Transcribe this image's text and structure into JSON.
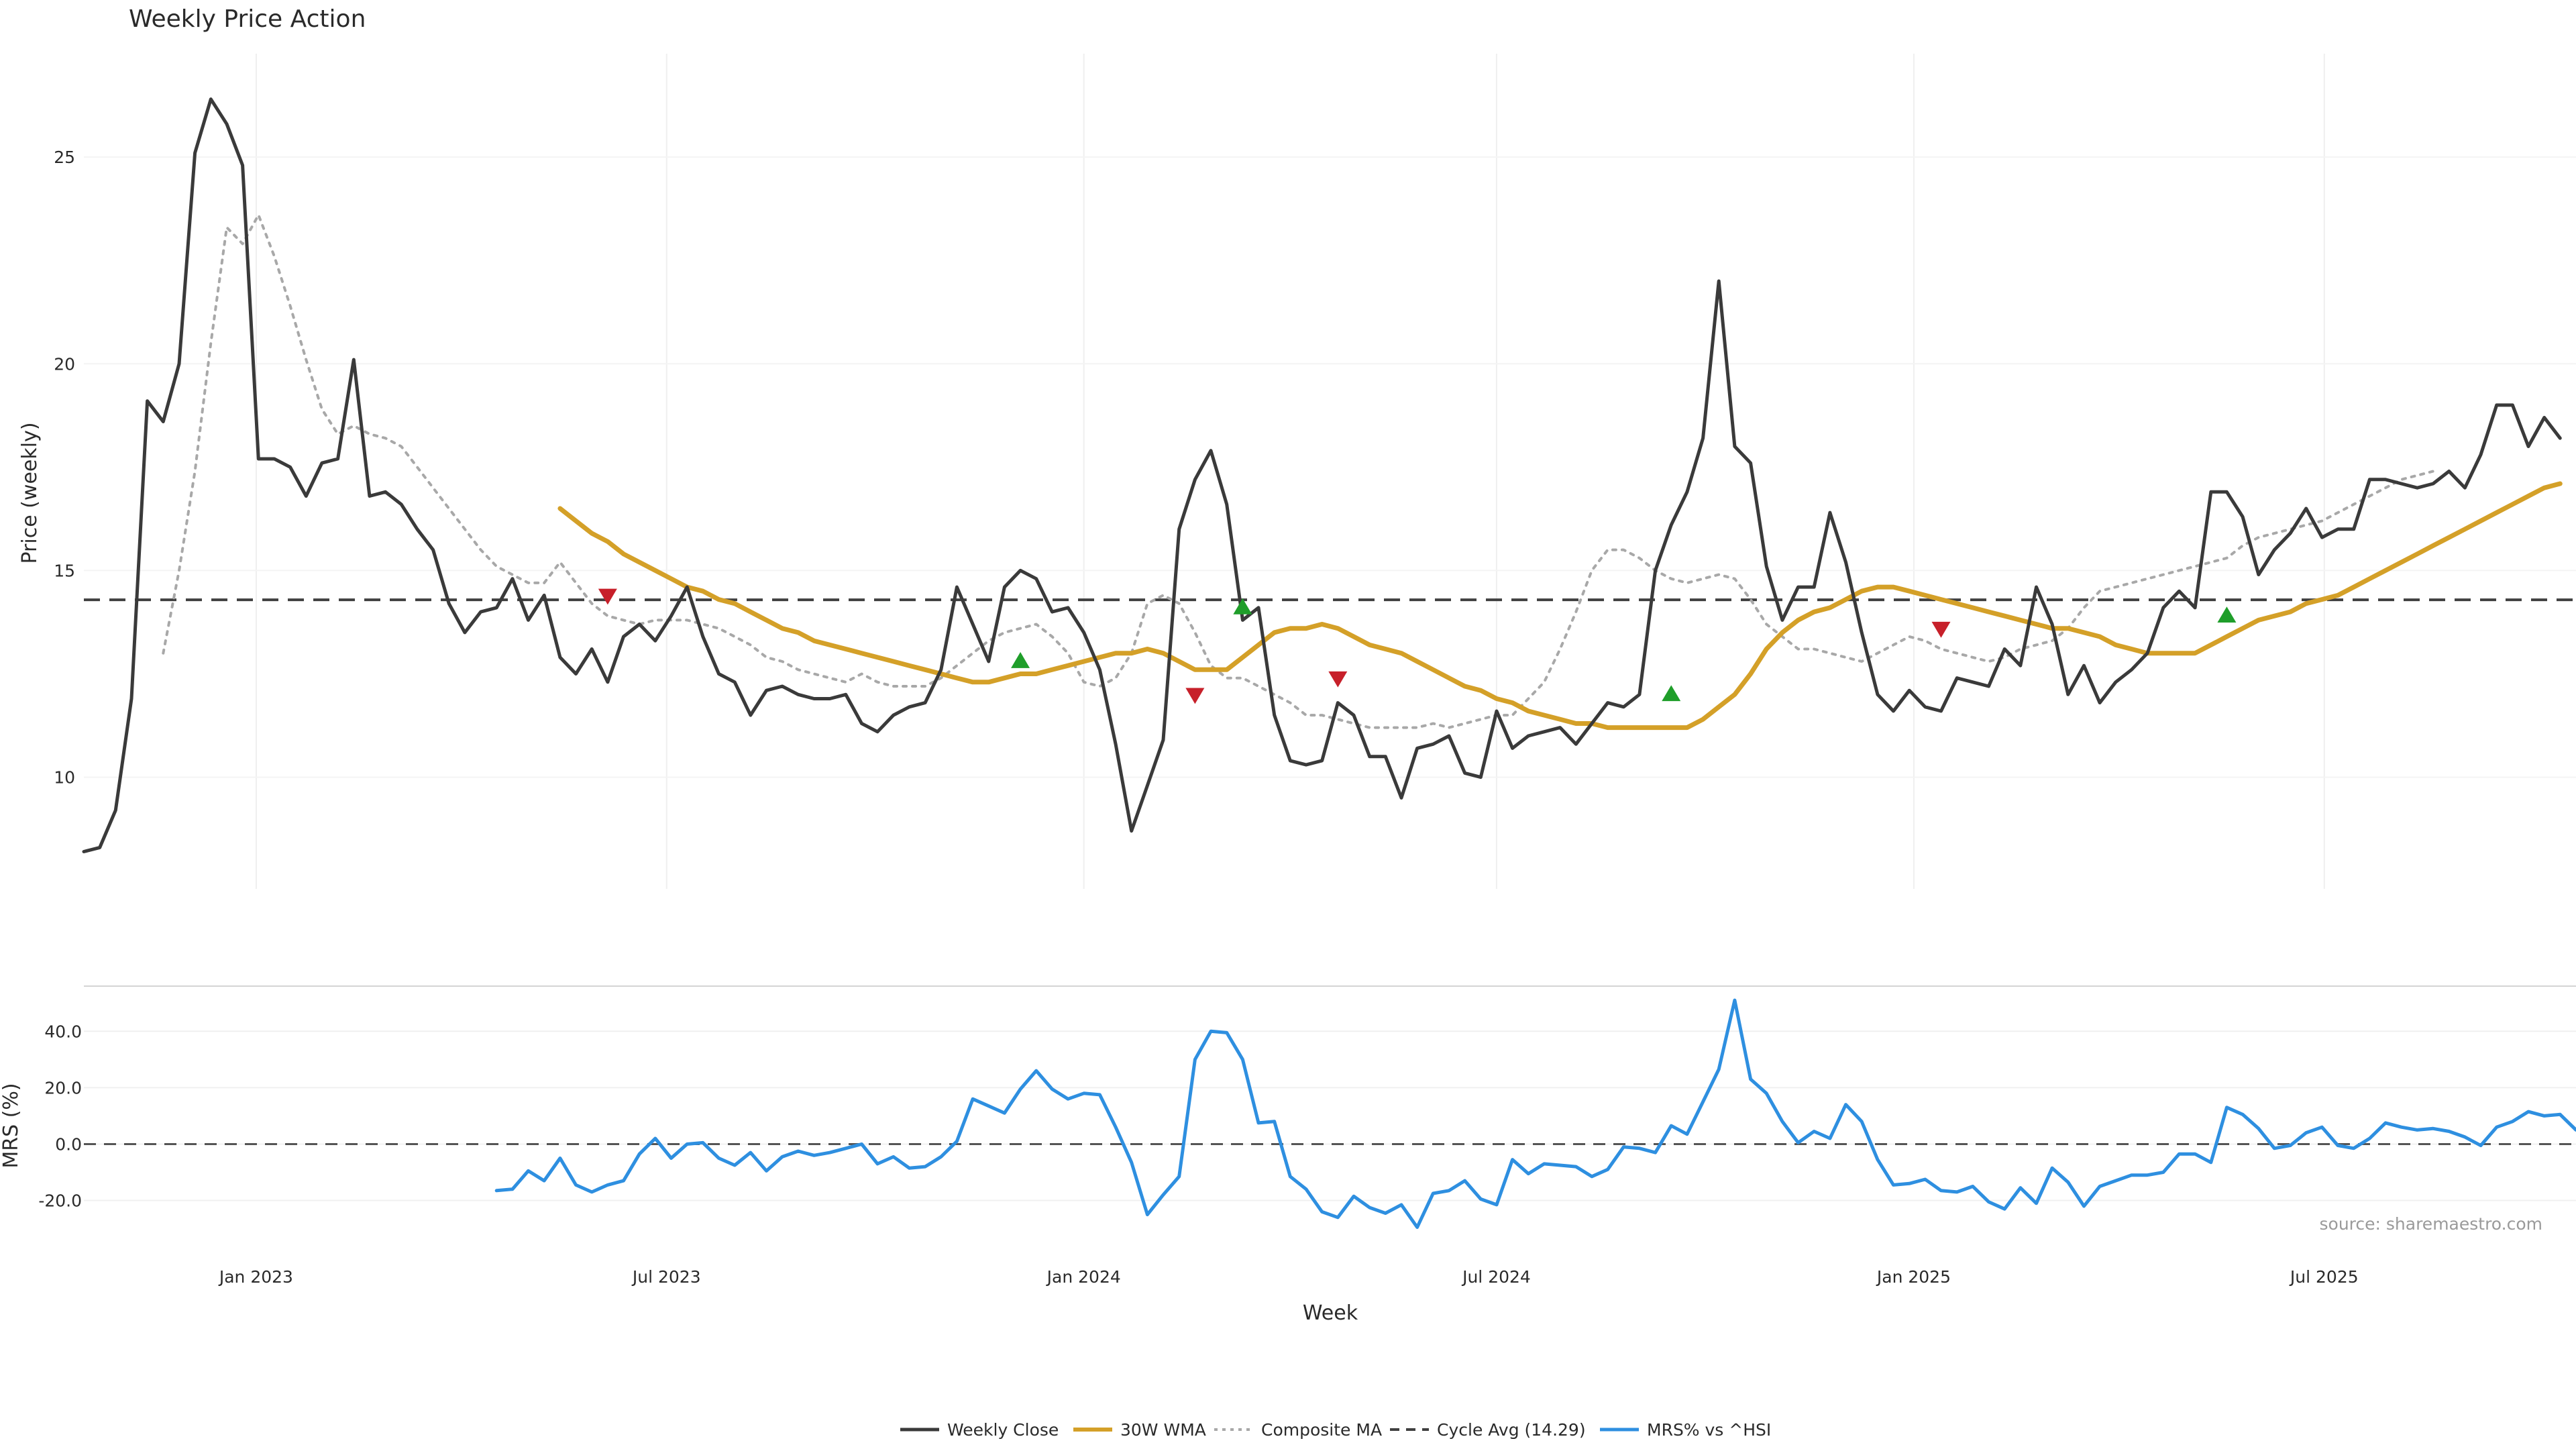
{
  "chart_data": {
    "type": "line",
    "title": "Weekly Price Action",
    "xlabel": "Week",
    "source": "source: sharemaestro.com",
    "x_ticks": [
      "Jan 2023",
      "Jul 2023",
      "Jan 2024",
      "Jul 2024",
      "Jan 2025",
      "Jul 2025"
    ],
    "x_range": [
      "2022-10-17",
      "2025-10-20"
    ],
    "grid": true,
    "legend_placement": "bottom-center",
    "price_panel": {
      "ylabel": "Price (weekly)",
      "y_ticks": [
        10,
        15,
        20,
        25
      ],
      "ylim": [
        7.3,
        27.5
      ],
      "cycle_avg": 14.29,
      "series": [
        {
          "name": "Weekly Close",
          "key": "close",
          "color": "#3a3a3a",
          "style": "solid",
          "x0": "2022-10-17",
          "step_days": 7,
          "values": [
            8.2,
            8.3,
            9.2,
            11.9,
            19.1,
            18.6,
            20.0,
            25.1,
            26.4,
            25.8,
            24.8,
            17.7,
            17.7,
            17.5,
            16.8,
            17.6,
            17.7,
            20.1,
            16.8,
            16.9,
            16.6,
            16.0,
            15.5,
            14.2,
            13.5,
            14.0,
            14.1,
            14.8,
            13.8,
            14.4,
            12.9,
            12.5,
            13.1,
            12.3,
            13.4,
            13.7,
            13.3,
            13.9,
            14.6,
            13.4,
            12.5,
            12.3,
            11.5,
            12.1,
            12.2,
            12.0,
            11.9,
            11.9,
            12.0,
            11.3,
            11.1,
            11.5,
            11.7,
            11.8,
            12.6,
            14.6,
            13.7,
            12.8,
            14.6,
            15.0,
            14.8,
            14.0,
            14.1,
            13.5,
            12.6,
            10.8,
            8.7,
            9.8,
            10.9,
            16.0,
            17.2,
            17.9,
            16.6,
            13.8,
            14.1,
            11.5,
            10.4,
            10.3,
            10.4,
            11.8,
            11.5,
            10.5,
            10.5,
            9.5,
            10.7,
            10.8,
            11.0,
            10.1,
            10.0,
            11.6,
            10.7,
            11.0,
            11.1,
            11.2,
            10.8,
            11.3,
            11.8,
            11.7,
            12.0,
            15.0,
            16.1,
            16.9,
            18.2,
            22.0,
            18.0,
            17.6,
            15.1,
            13.8,
            14.6,
            14.6,
            16.4,
            15.2,
            13.5,
            12.0,
            11.6,
            12.1,
            11.7,
            11.6,
            12.4,
            12.3,
            12.2,
            13.1,
            12.7,
            14.6,
            13.7,
            12.0,
            12.7,
            11.8,
            12.3,
            12.6,
            13.0,
            14.1,
            14.5,
            14.1,
            16.9,
            16.9,
            16.3,
            14.9,
            15.5,
            15.9,
            16.5,
            15.8,
            16.0,
            16.0,
            17.2,
            17.2,
            17.1,
            17.0,
            17.1,
            17.4,
            17.0,
            17.8,
            19.0,
            19.0,
            18.0,
            18.7,
            18.2
          ]
        },
        {
          "name": "30W WMA",
          "key": "wma",
          "color": "#d4a028",
          "style": "solid",
          "x0": "2023-05-15",
          "step_days": 7,
          "values": [
            16.5,
            16.2,
            15.9,
            15.7,
            15.4,
            15.2,
            15.0,
            14.8,
            14.6,
            14.5,
            14.3,
            14.2,
            14.0,
            13.8,
            13.6,
            13.5,
            13.3,
            13.2,
            13.1,
            13.0,
            12.9,
            12.8,
            12.7,
            12.6,
            12.5,
            12.4,
            12.3,
            12.3,
            12.4,
            12.5,
            12.5,
            12.6,
            12.7,
            12.8,
            12.9,
            13.0,
            13.0,
            13.1,
            13.0,
            12.8,
            12.6,
            12.6,
            12.6,
            12.9,
            13.2,
            13.5,
            13.6,
            13.6,
            13.7,
            13.6,
            13.4,
            13.2,
            13.1,
            13.0,
            12.8,
            12.6,
            12.4,
            12.2,
            12.1,
            11.9,
            11.8,
            11.6,
            11.5,
            11.4,
            11.3,
            11.3,
            11.2,
            11.2,
            11.2,
            11.2,
            11.2,
            11.2,
            11.4,
            11.7,
            12.0,
            12.5,
            13.1,
            13.5,
            13.8,
            14.0,
            14.1,
            14.3,
            14.5,
            14.6,
            14.6,
            14.5,
            14.4,
            14.3,
            14.2,
            14.1,
            14.0,
            13.9,
            13.8,
            13.7,
            13.6,
            13.6,
            13.5,
            13.4,
            13.2,
            13.1,
            13.0,
            13.0,
            13.0,
            13.0,
            13.2,
            13.4,
            13.6,
            13.8,
            13.9,
            14.0,
            14.2,
            14.3,
            14.4,
            14.6,
            14.8,
            15.0,
            15.2,
            15.4,
            15.6,
            15.8,
            16.0,
            16.2,
            16.4,
            16.6,
            16.8,
            17.0,
            17.1
          ]
        },
        {
          "name": "Composite MA",
          "key": "composite",
          "color": "#a8a8a8",
          "style": "dotted",
          "x0": "2022-11-21",
          "step_days": 7,
          "values": [
            13.0,
            15.0,
            17.4,
            20.5,
            23.3,
            22.9,
            23.6,
            22.6,
            21.4,
            20.1,
            18.9,
            18.3,
            18.5,
            18.3,
            18.2,
            18.0,
            17.5,
            17.0,
            16.5,
            16.0,
            15.5,
            15.1,
            14.9,
            14.7,
            14.7,
            15.2,
            14.7,
            14.2,
            13.9,
            13.8,
            13.7,
            13.8,
            13.8,
            13.8,
            13.7,
            13.6,
            13.4,
            13.2,
            12.9,
            12.8,
            12.6,
            12.5,
            12.4,
            12.3,
            12.5,
            12.3,
            12.2,
            12.2,
            12.2,
            12.4,
            12.7,
            13.0,
            13.3,
            13.5,
            13.6,
            13.7,
            13.4,
            13.0,
            12.3,
            12.2,
            12.4,
            13.0,
            14.2,
            14.4,
            14.2,
            13.5,
            12.7,
            12.4,
            12.4,
            12.2,
            12.0,
            11.8,
            11.5,
            11.5,
            11.4,
            11.3,
            11.2,
            11.2,
            11.2,
            11.2,
            11.3,
            11.2,
            11.3,
            11.4,
            11.5,
            11.5,
            11.9,
            12.3,
            13.1,
            14.0,
            15.0,
            15.5,
            15.5,
            15.3,
            15.0,
            14.8,
            14.7,
            14.8,
            14.9,
            14.8,
            14.3,
            13.7,
            13.4,
            13.1,
            13.1,
            13.0,
            12.9,
            12.8,
            13.0,
            13.2,
            13.4,
            13.3,
            13.1,
            13.0,
            12.9,
            12.8,
            12.9,
            13.1,
            13.2,
            13.3,
            13.6,
            14.1,
            14.5,
            14.6,
            14.7,
            14.8,
            14.9,
            15.0,
            15.1,
            15.2,
            15.3,
            15.6,
            15.8,
            15.9,
            16.0,
            16.1,
            16.2,
            16.4,
            16.6,
            16.8,
            17.0,
            17.2,
            17.3,
            17.4
          ]
        },
        {
          "name": "Cycle Avg (14.29)",
          "key": "cycle",
          "color": "#404040",
          "style": "dashed"
        }
      ],
      "buy_signals": [
        {
          "date": "2023-12-04",
          "price": 12.8
        },
        {
          "date": "2024-03-11",
          "price": 14.1
        },
        {
          "date": "2024-09-16",
          "price": 12.0
        },
        {
          "date": "2025-05-19",
          "price": 13.9
        }
      ],
      "sell_signals": [
        {
          "date": "2023-06-05",
          "price": 14.4
        },
        {
          "date": "2024-02-19",
          "price": 12.0
        },
        {
          "date": "2024-04-22",
          "price": 12.4
        },
        {
          "date": "2025-01-13",
          "price": 13.6
        }
      ],
      "signal_colors": {
        "buy": "#1f9e2a",
        "sell": "#c7202a"
      }
    },
    "mrs_panel": {
      "ylabel": "MRS (%)",
      "y_ticks": [
        "-20.0",
        "0.0",
        "20.0",
        "40.0"
      ],
      "ylim": [
        -32,
        56
      ],
      "zero_line": true,
      "series": [
        {
          "name": "MRS% vs ^HSI",
          "key": "mrs",
          "color": "#2e8fe0",
          "style": "solid",
          "x0": "2023-04-17",
          "step_days": 7,
          "values": [
            -16.5,
            -16.0,
            -9.5,
            -13.0,
            -5.0,
            -14.5,
            -17.0,
            -14.5,
            -13.0,
            -3.5,
            2.0,
            -5.0,
            0.0,
            0.5,
            -5.0,
            -7.5,
            -3.0,
            -9.5,
            -4.5,
            -2.5,
            -4.0,
            -3.0,
            -1.5,
            0.0,
            -7.0,
            -4.5,
            -8.5,
            -8.0,
            -4.5,
            1.0,
            16.0,
            13.5,
            11.0,
            19.5,
            26.0,
            19.5,
            16.0,
            18.0,
            17.5,
            6.0,
            -6.5,
            -25.0,
            -18.0,
            -11.5,
            30.0,
            40.0,
            39.5,
            30.0,
            7.5,
            8.0,
            -11.5,
            -16.0,
            -24.0,
            -26.0,
            -18.5,
            -22.5,
            -24.5,
            -21.5,
            -29.5,
            -17.5,
            -16.5,
            -13.0,
            -19.5,
            -21.5,
            -5.5,
            -10.5,
            -7.0,
            -7.5,
            -8.0,
            -11.5,
            -9.0,
            -1.0,
            -1.5,
            -3.0,
            6.5,
            3.5,
            15.0,
            26.5,
            51.0,
            23.0,
            18.0,
            8.0,
            0.5,
            4.5,
            2.0,
            14.0,
            8.0,
            -5.5,
            -14.5,
            -14.0,
            -12.5,
            -16.5,
            -17.0,
            -15.0,
            -20.5,
            -23.0,
            -15.5,
            -21.0,
            -8.5,
            -13.5,
            -22.0,
            -15.0,
            -13.0,
            -11.0,
            -11.0,
            -10.0,
            -3.5,
            -3.5,
            -6.5,
            13.0,
            10.5,
            5.5,
            -1.5,
            -0.5,
            4.0,
            6.0,
            -0.5,
            -1.5,
            2.0,
            7.5,
            6.0,
            5.0,
            5.5,
            4.5,
            2.5,
            -0.5,
            6.0,
            8.0,
            11.5,
            10.0,
            10.5,
            5.0
          ]
        }
      ]
    },
    "legend": [
      {
        "label": "Weekly Close",
        "key": "close"
      },
      {
        "label": "30W WMA",
        "key": "wma"
      },
      {
        "label": "Composite MA",
        "key": "composite"
      },
      {
        "label": "Cycle Avg (14.29)",
        "key": "cycle"
      },
      {
        "label": "MRS% vs ^HSI",
        "key": "mrs"
      }
    ]
  }
}
